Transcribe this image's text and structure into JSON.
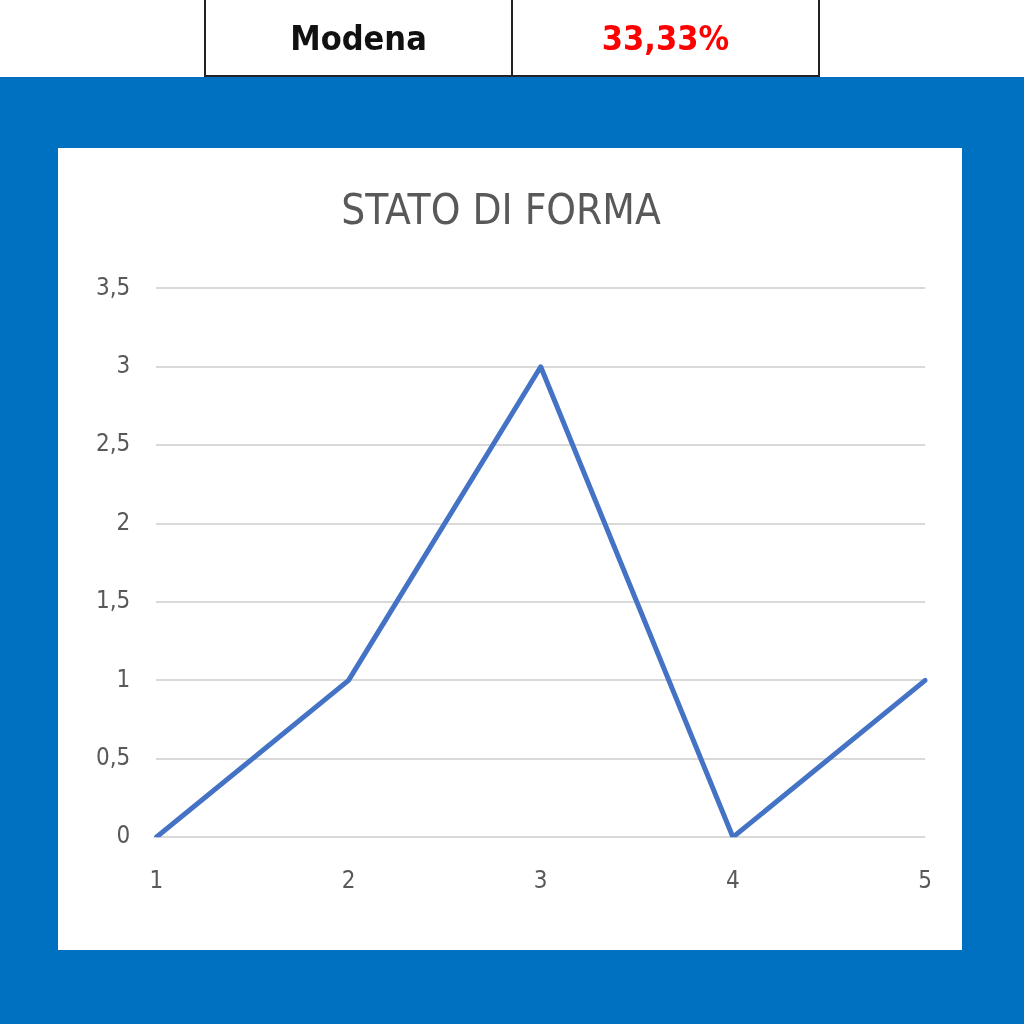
{
  "chart_data": {
    "type": "line",
    "title": "STATO DI FORMA",
    "categories": [
      "1",
      "2",
      "3",
      "4",
      "5"
    ],
    "series": [
      {
        "color": "#4472c4",
        "values": [
          0,
          1,
          3,
          0,
          1
        ]
      }
    ],
    "ylim": [
      0,
      3.5
    ],
    "yticks": [
      0,
      {
        "value": 0.5,
        "label": "0,5"
      },
      1,
      {
        "value": 1.5,
        "label": "1,5"
      },
      2,
      {
        "value": 2.5,
        "label": "2,5"
      },
      3,
      {
        "value": 3.5,
        "label": "3,5"
      }
    ],
    "grid": "y",
    "legend": false,
    "marker": "none",
    "line_style": "solid",
    "annotations": [
      "Modena",
      "33,33%"
    ]
  }
}
